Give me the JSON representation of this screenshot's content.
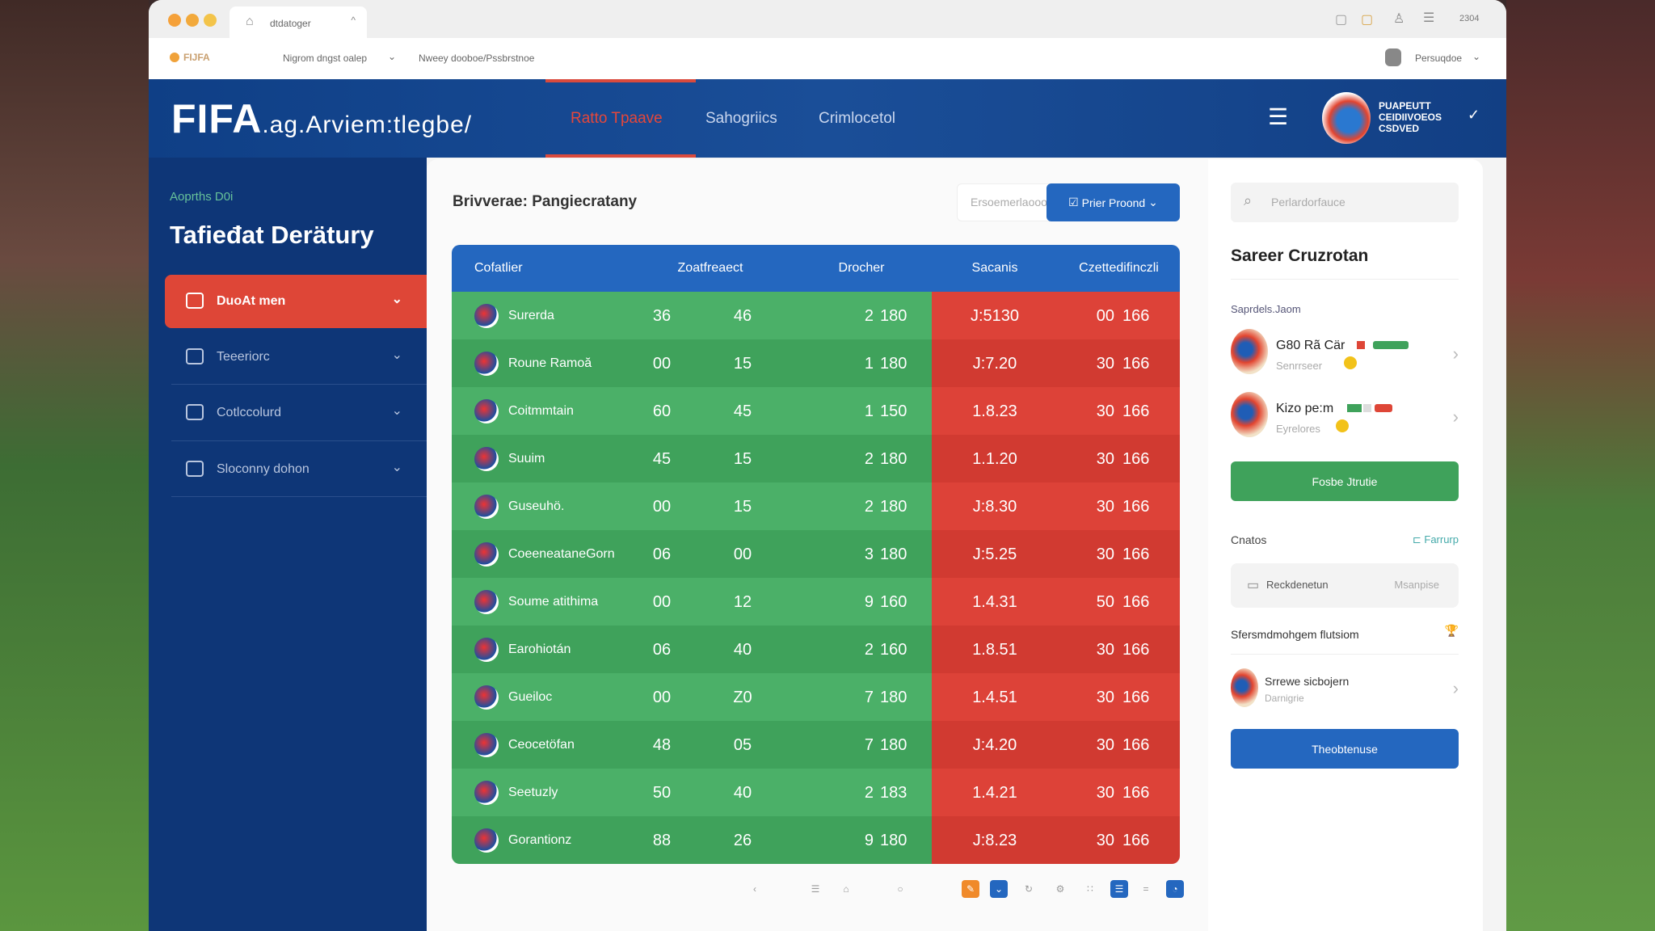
{
  "browser": {
    "tab_title": "dtdatoger",
    "address": "Nigrom dngst oalep",
    "path": "Nweey dooboe/Pssbrstnoe",
    "site_label": "FIJFA",
    "profile": "Persuqdoe",
    "time": "2304"
  },
  "header": {
    "logo": "FIFA",
    "logo_suffix": ".ag.Arviem:tlegbe/",
    "nav": [
      "Ratto Tpaave",
      "Sahogriics",
      "Crimlocetol"
    ],
    "badge": "PUAPEUTT CEIDIIVOEOS CSDVED"
  },
  "sidebar": {
    "subtitle": "Aoprths D0i",
    "title": "Tafieđat Derätury",
    "items": [
      {
        "label": "DuoAt men",
        "icon": "list-icon"
      },
      {
        "label": "Teeeriorc",
        "icon": "calendar-icon"
      },
      {
        "label": "Cotlccolurd",
        "icon": "image-icon"
      },
      {
        "label": "Sloconny dohon",
        "icon": "info-icon"
      }
    ]
  },
  "main": {
    "title": "Brivverae: Pangiecratany",
    "select_placeholder": "Ersoemerlaooos",
    "filter_button": "Prier Proond",
    "columns": [
      "Cofatlier",
      "Zoatfreaect",
      "Drocher",
      "Sacanis",
      "Czettedifinczli"
    ],
    "rows": [
      [
        "Surerda",
        "36",
        "46",
        "2",
        "180",
        "J:5130",
        "00",
        "166"
      ],
      [
        "Roune Ramoă",
        "00",
        "15",
        "1",
        "180",
        "J:7.20",
        "30",
        "166"
      ],
      [
        "Coitmmtain",
        "60",
        "45",
        "1",
        "150",
        "1.8.23",
        "30",
        "166"
      ],
      [
        "Suuim",
        "45",
        "15",
        "2",
        "180",
        "1.1.20",
        "30",
        "166"
      ],
      [
        "Guseuhö.",
        "00",
        "15",
        "2",
        "180",
        "J:8.30",
        "30",
        "166"
      ],
      [
        "CoeeneataneGorn",
        "06",
        "00",
        "3",
        "180",
        "J:5.25",
        "30",
        "166"
      ],
      [
        "Soume atithima",
        "00",
        "12",
        "9",
        "160",
        "1.4.31",
        "50",
        "166"
      ],
      [
        "Earohiotán",
        "06",
        "40",
        "2",
        "160",
        "1.8.51",
        "30",
        "166"
      ],
      [
        "Gueiloc",
        "00",
        "Z0",
        "7",
        "180",
        "1.4.51",
        "30",
        "166"
      ],
      [
        "Ceocetöfan",
        "48",
        "05",
        "7",
        "180",
        "J:4.20",
        "30",
        "166"
      ],
      [
        "Seetuzly",
        "50",
        "40",
        "2",
        "183",
        "1.4.21",
        "30",
        "166"
      ],
      [
        "Gorantionz",
        "88",
        "26",
        "9",
        "180",
        "J:8.23",
        "30",
        "166"
      ]
    ]
  },
  "right": {
    "search_placeholder": "Perlardorfauce",
    "title": "Sareer Cruzrotan",
    "section_label": "Saprdels.Jaom",
    "items": [
      {
        "name": "G80 Rã Cär",
        "sub": "Senrrseer"
      },
      {
        "name": "Kizo pe:m",
        "sub": "Eyrelores"
      }
    ],
    "green_button": "Fosbe Jtrutie",
    "contacts_label": "Cnatos",
    "contacts_link": "Farrurp",
    "box_label": "Reckdenetun",
    "box_value": "Msanpise",
    "section2": "Sfersmdmohgem flutsiom",
    "item3": {
      "name": "Srrewe sicbojern",
      "sub": "Darnigrie"
    },
    "blue_button": "Theobtenuse"
  },
  "colors": {
    "brand_blue": "#0e3677",
    "header_blue": "#2467bf",
    "accent_red": "#de4637",
    "green": "#4bb068"
  }
}
